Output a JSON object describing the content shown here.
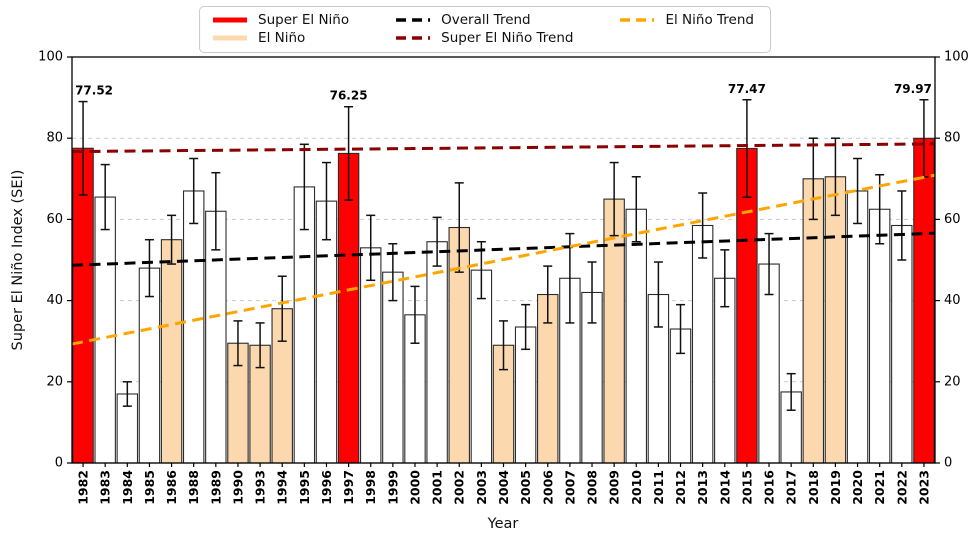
{
  "figure": {
    "xlabel": "Year",
    "ylabel": "Super El Niño Index (SEI)"
  },
  "legend": {
    "items": [
      {
        "label": "Super El Niño",
        "style": "solid",
        "color": "#ff0000"
      },
      {
        "label": "El Niño",
        "style": "solid",
        "color": "#fcd8ae"
      },
      {
        "label": "Overall Trend",
        "style": "dashed",
        "color": "#000000"
      },
      {
        "label": "Super El Niño Trend",
        "style": "dashed",
        "color": "#8b0000"
      },
      {
        "label": "El Niño Trend",
        "style": "dashed",
        "color": "#ffa500"
      }
    ]
  },
  "chart_data": {
    "type": "bar",
    "title": "",
    "xlabel": "Year",
    "ylabel": "Super El Niño Index (SEI)",
    "ylim": [
      0,
      100
    ],
    "yticks": [
      0,
      20,
      40,
      60,
      80,
      100
    ],
    "grid": true,
    "legend_position": "upper center outside",
    "categories": [
      "1982",
      "1983",
      "1984",
      "1985",
      "1986",
      "1988",
      "1989",
      "1990",
      "1993",
      "1994",
      "1995",
      "1996",
      "1997",
      "1998",
      "1999",
      "2000",
      "2001",
      "2002",
      "2003",
      "2004",
      "2005",
      "2006",
      "2007",
      "2008",
      "2009",
      "2010",
      "2011",
      "2012",
      "2013",
      "2014",
      "2015",
      "2016",
      "2017",
      "2018",
      "2019",
      "2020",
      "2021",
      "2022",
      "2023"
    ],
    "values": [
      77.52,
      65.5,
      17,
      48,
      55,
      67,
      62,
      29.5,
      29,
      38,
      68,
      64.5,
      76.25,
      53,
      47,
      36.5,
      54.5,
      58,
      47.5,
      29,
      33.5,
      41.5,
      45.5,
      42,
      65,
      62.5,
      41.5,
      33,
      58.5,
      45.5,
      77.47,
      49,
      17.5,
      70,
      70.5,
      67,
      62.5,
      58.5,
      79.97
    ],
    "errors": [
      11.5,
      8,
      3,
      7,
      6,
      8,
      9.5,
      5.5,
      5.5,
      8,
      10.5,
      9.5,
      11.5,
      8,
      7,
      7,
      6,
      11,
      7,
      6,
      5.5,
      7,
      11,
      7.5,
      9,
      8,
      8,
      6,
      8,
      7,
      12,
      7.5,
      4.5,
      10,
      9.5,
      8,
      8.5,
      8.5,
      9.5
    ],
    "bar_types": [
      "super",
      "normal",
      "normal",
      "normal",
      "elnino",
      "normal",
      "normal",
      "elnino",
      "elnino",
      "elnino",
      "normal",
      "normal",
      "super",
      "normal",
      "normal",
      "normal",
      "normal",
      "elnino",
      "normal",
      "elnino",
      "normal",
      "elnino",
      "normal",
      "normal",
      "elnino",
      "normal",
      "normal",
      "normal",
      "normal",
      "normal",
      "super",
      "normal",
      "normal",
      "elnino",
      "elnino",
      "normal",
      "normal",
      "normal",
      "super"
    ],
    "value_labels": [
      "77.52",
      null,
      null,
      null,
      null,
      null,
      null,
      null,
      null,
      null,
      null,
      null,
      "76.25",
      null,
      null,
      null,
      null,
      null,
      null,
      null,
      null,
      null,
      null,
      null,
      null,
      null,
      null,
      null,
      null,
      null,
      "77.47",
      null,
      null,
      null,
      null,
      null,
      null,
      null,
      "79.97"
    ],
    "bar_colors": {
      "super": "#ff0000",
      "elnino": "#fcd8ae",
      "normal": "#ffffff"
    },
    "trend_lines": [
      {
        "name": "Overall Trend",
        "color": "#000000",
        "start": 48.7,
        "end": 56.6
      },
      {
        "name": "Super El Niño Trend",
        "color": "#8b0000",
        "start": 76.7,
        "end": 78.6
      },
      {
        "name": "El Niño Trend",
        "color": "#ffa500",
        "start": 29.3,
        "end": 70.9
      }
    ]
  }
}
